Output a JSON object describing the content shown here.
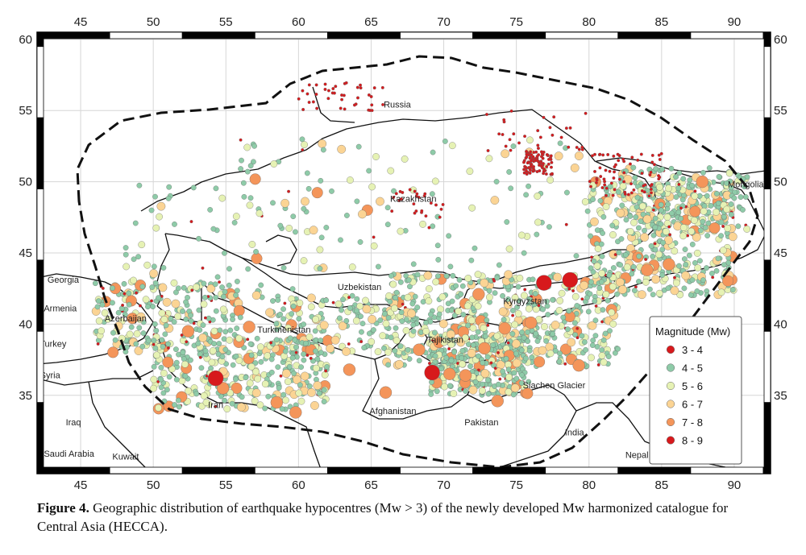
{
  "map": {
    "lon_ticks": [
      "45",
      "50",
      "55",
      "60",
      "65",
      "70",
      "75",
      "80",
      "85",
      "90"
    ],
    "lat_ticks": [
      "35",
      "40",
      "45",
      "50",
      "55",
      "60"
    ],
    "lon_range": [
      42,
      92.5
    ],
    "lat_range": [
      29.5,
      60.5
    ],
    "places": [
      {
        "name": "Russia",
        "lon": 66.8,
        "lat": 55.2
      },
      {
        "name": "Kazakhstan",
        "lon": 67.9,
        "lat": 48.6
      },
      {
        "name": "Mongolia",
        "lon": 90.8,
        "lat": 49.6
      },
      {
        "name": "Uzbekistan",
        "lon": 64.2,
        "lat": 42.4
      },
      {
        "name": "Kyrgyzstan",
        "lon": 75.6,
        "lat": 41.4
      },
      {
        "name": "Tajikistan",
        "lon": 70.1,
        "lat": 38.7
      },
      {
        "name": "Turkmenistan",
        "lon": 59.0,
        "lat": 39.4
      },
      {
        "name": "Georgia",
        "lon": 43.8,
        "lat": 42.9
      },
      {
        "name": "Armenia",
        "lon": 43.6,
        "lat": 40.9
      },
      {
        "name": "Azerbaijan",
        "lon": 48.1,
        "lat": 40.2
      },
      {
        "name": "Turkey",
        "lon": 43.1,
        "lat": 38.4
      },
      {
        "name": "Syria",
        "lon": 42.9,
        "lat": 36.2
      },
      {
        "name": "Iraq",
        "lon": 44.5,
        "lat": 32.9
      },
      {
        "name": "Iran",
        "lon": 54.3,
        "lat": 34.1
      },
      {
        "name": "Afghanistan",
        "lon": 66.5,
        "lat": 33.7
      },
      {
        "name": "Pakistan",
        "lon": 72.6,
        "lat": 32.9
      },
      {
        "name": "India",
        "lon": 79.0,
        "lat": 32.2
      },
      {
        "name": "Siachen Glacier",
        "lon": 77.6,
        "lat": 35.5
      },
      {
        "name": "Saudi Arabia",
        "lon": 44.2,
        "lat": 30.7
      },
      {
        "name": "Kuwait",
        "lon": 48.1,
        "lat": 30.5
      },
      {
        "name": "Nepal",
        "lon": 83.3,
        "lat": 30.6
      }
    ]
  },
  "legend": {
    "title": "Magnitude (Mw)",
    "classes": [
      {
        "label": "3 - 4",
        "color": "#d7191c"
      },
      {
        "label": "4 - 5",
        "color": "#8ecba8"
      },
      {
        "label": "5 - 6",
        "color": "#e6f2b4"
      },
      {
        "label": "6 - 7",
        "color": "#fbd494"
      },
      {
        "label": "7 - 8",
        "color": "#f4955a"
      },
      {
        "label": "8 - 9",
        "color": "#d7191c"
      }
    ]
  },
  "caption": {
    "label": "Figure 4.",
    "text": "Geographic distribution of earthquake hypocentres (Mw > 3) of the newly developed Mw harmonized catalogue for Central Asia (HECCA)."
  }
}
